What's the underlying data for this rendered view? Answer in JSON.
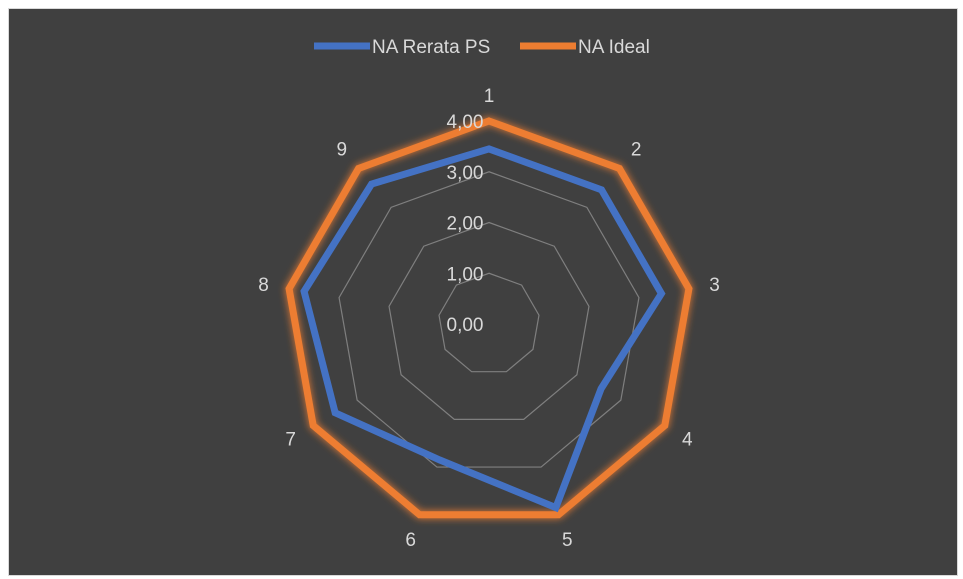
{
  "chart_data": {
    "type": "radar",
    "categories": [
      "1",
      "2",
      "3",
      "4",
      "5",
      "6",
      "7",
      "8",
      "9"
    ],
    "series": [
      {
        "name": "NA Rerata PS",
        "color": "#4472c4",
        "values": [
          3.45,
          3.45,
          3.45,
          2.55,
          3.85,
          2.85,
          3.5,
          3.7,
          3.6
        ]
      },
      {
        "name": "NA Ideal",
        "color": "#ed7d31",
        "values": [
          4.0,
          4.0,
          4.0,
          4.0,
          4.0,
          4.0,
          4.0,
          4.0,
          4.0
        ]
      }
    ],
    "rlim": [
      0,
      4
    ],
    "ticks": [
      "0,00",
      "1,00",
      "2,00",
      "3,00",
      "4,00"
    ],
    "tick_values": [
      0,
      1,
      2,
      3,
      4
    ],
    "legend_position": "top",
    "grid": true,
    "background": "#404040",
    "grid_color": "#7f7f7f"
  }
}
